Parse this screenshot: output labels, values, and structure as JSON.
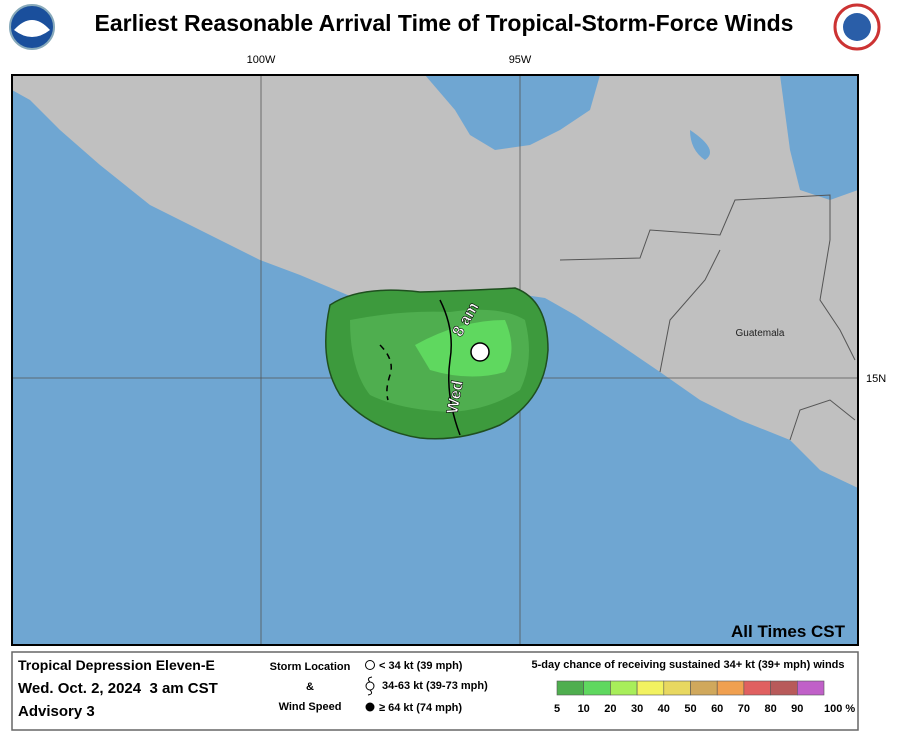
{
  "header": {
    "title": "Earliest Reasonable Arrival Time of Tropical-Storm-Force Winds"
  },
  "map": {
    "lon_labels": [
      "100W",
      "95W"
    ],
    "lat_labels": [
      "15N"
    ],
    "place_labels": [
      "Guatemala"
    ],
    "time_label": [
      "Wed",
      "8 am"
    ],
    "note": "All Times CST"
  },
  "footer": {
    "storm": "Tropical Depression Eleven-E",
    "date": "Wed. Oct. 2, 2024  3 am CST",
    "advisory": "Advisory 3",
    "storm_key": {
      "title": [
        "Storm Location",
        "&",
        "Wind Speed"
      ],
      "items": [
        "< 34 kt (39 mph)",
        "34-63 kt (39-73 mph)",
        "≥ 64 kt (74 mph)"
      ]
    },
    "probability": {
      "title": "5-day chance of receiving sustained 34+ kt (39+ mph) winds",
      "ticks": [
        5,
        10,
        20,
        30,
        40,
        50,
        60,
        70,
        80,
        90,
        {
          "value": 100,
          "label": "100 %"
        }
      ],
      "colors": [
        "#4fae4f",
        "#5fd85f",
        "#a8ee5a",
        "#f2f260",
        "#e8d860",
        "#d0a85c",
        "#f0a050",
        "#e06060",
        "#b85a5a",
        "#c060c8"
      ]
    }
  }
}
